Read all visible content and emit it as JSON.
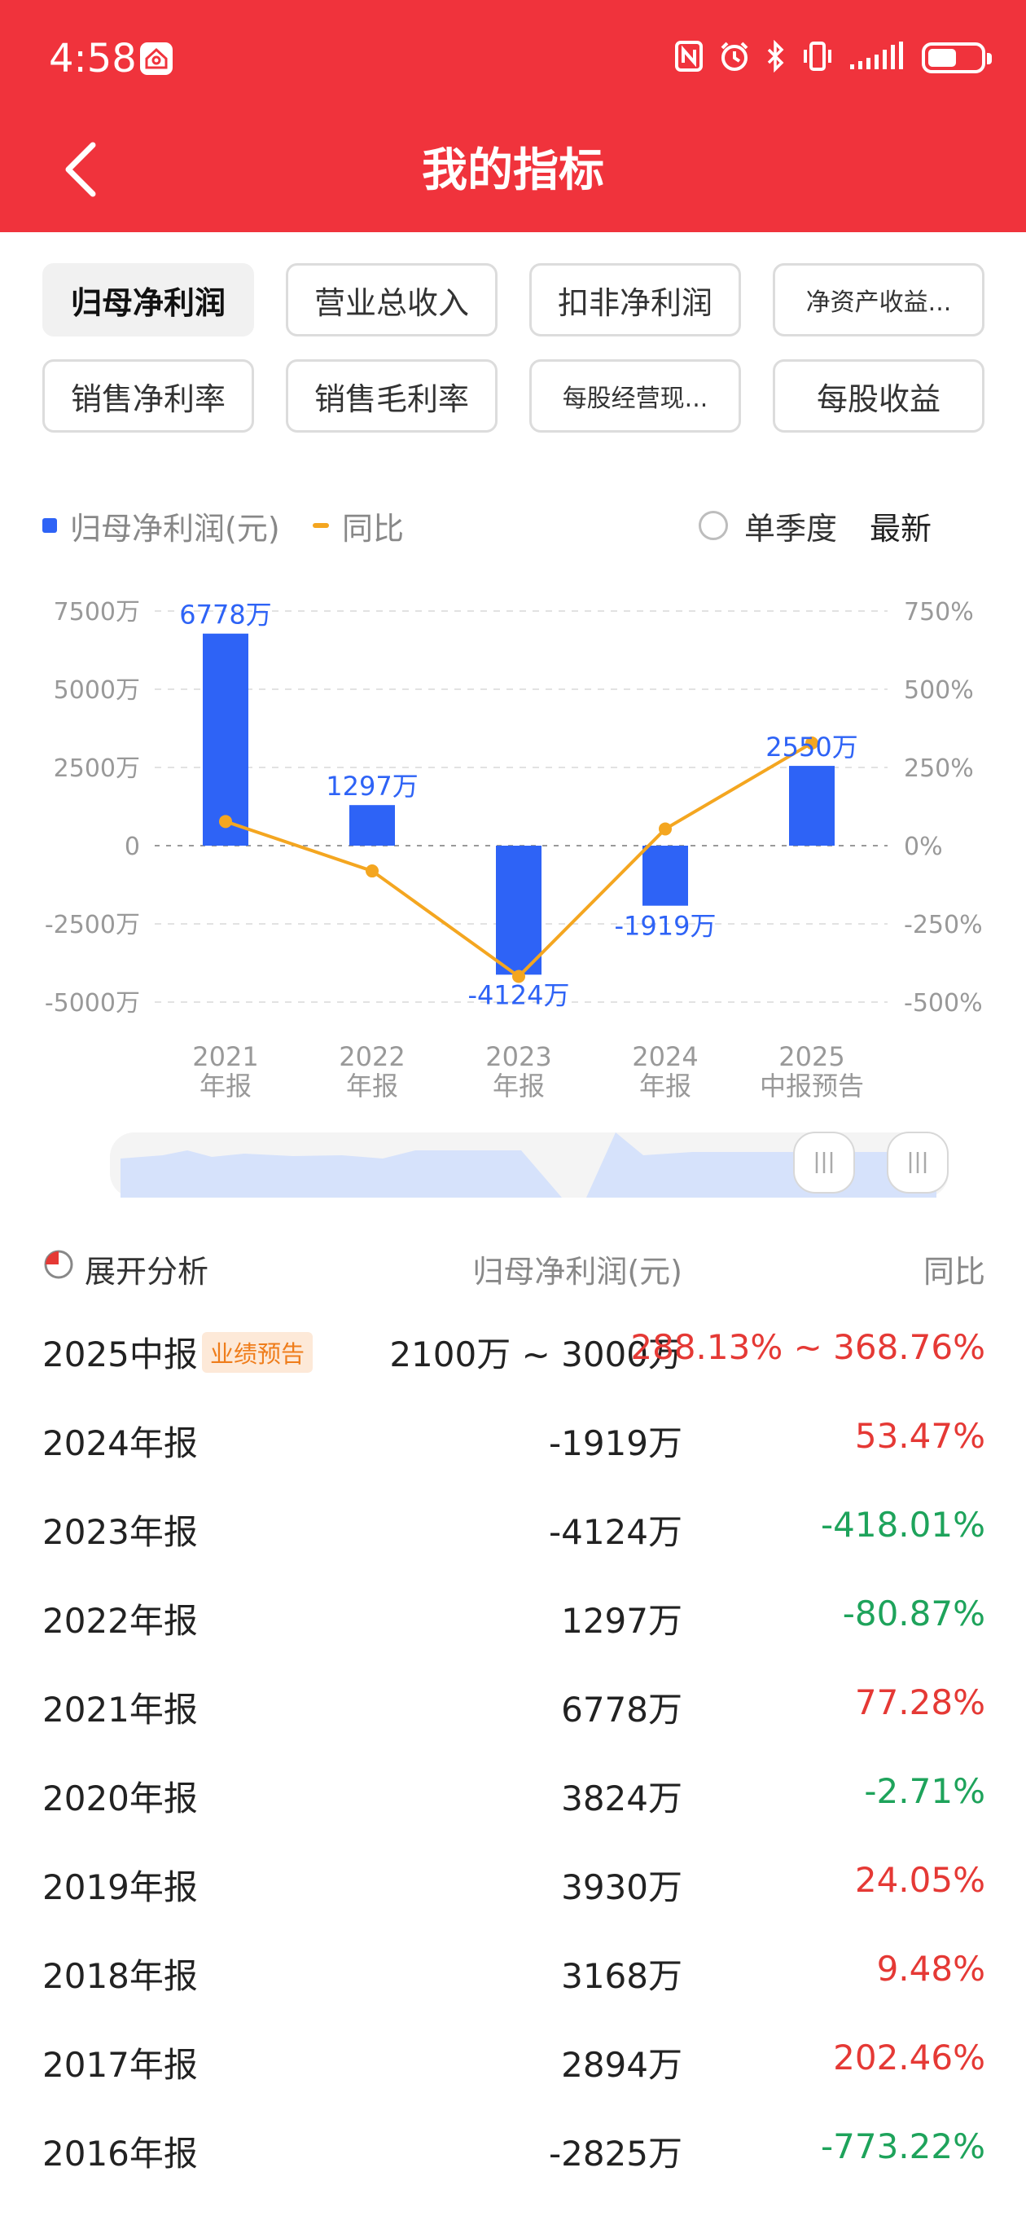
{
  "status_bar": {
    "time": "4:58"
  },
  "header": {
    "title": "我的指标"
  },
  "tabs": [
    {
      "label": "归母净利润",
      "active": true
    },
    {
      "label": "营业总收入"
    },
    {
      "label": "扣非净利润"
    },
    {
      "label": "净资产收益..."
    },
    {
      "label": "销售净利率"
    },
    {
      "label": "销售毛利率"
    },
    {
      "label": "每股经营现..."
    },
    {
      "label": "每股收益"
    }
  ],
  "legend": {
    "series_bar": "归母净利润(元)",
    "series_line": "同比",
    "single_quarter": "单季度",
    "latest": "最新"
  },
  "chart_data": {
    "type": "bar",
    "categories": [
      "2021\n年报",
      "2022\n年报",
      "2023\n年报",
      "2024\n年报",
      "2025\n中报预告"
    ],
    "categories_line1": [
      "2021",
      "2022",
      "2023",
      "2024",
      "2025"
    ],
    "categories_line2": [
      "年报",
      "年报",
      "年报",
      "年报",
      "中报预告"
    ],
    "series": [
      {
        "name": "归母净利润(元)",
        "type": "bar",
        "values": [
          6778,
          1297,
          -4124,
          -1919,
          2550
        ],
        "labels": [
          "6778万",
          "1297万",
          "-4124万",
          "-1919万",
          "2550万"
        ],
        "color": "#2e63f6"
      },
      {
        "name": "同比",
        "type": "line",
        "values": [
          77.28,
          -80.87,
          -418.01,
          53.47,
          328
        ],
        "color": "#f4a620"
      }
    ],
    "left_axis": {
      "ticks": [
        "7500万",
        "5000万",
        "2500万",
        "0",
        "-2500万",
        "-5000万"
      ],
      "tick_values": [
        7500,
        5000,
        2500,
        0,
        -2500,
        -5000
      ],
      "range": [
        -5000,
        7500
      ]
    },
    "right_axis": {
      "ticks": [
        "750%",
        "500%",
        "250%",
        "0%",
        "-250%",
        "-500%"
      ],
      "tick_values": [
        750,
        500,
        250,
        0,
        -250,
        -500
      ],
      "range": [
        -500,
        750
      ]
    },
    "grid": true
  },
  "table": {
    "expand_label": "展开分析",
    "col_value": "归母净利润(元)",
    "col_yoy": "同比",
    "rows": [
      {
        "period": "2025中报",
        "tag": "业绩预告",
        "value": "2100万 ~ 3000万",
        "yoy": "288.13% ~ 368.76%",
        "dir": "up"
      },
      {
        "period": "2024年报",
        "value": "-1919万",
        "yoy": "53.47%",
        "dir": "up"
      },
      {
        "period": "2023年报",
        "value": "-4124万",
        "yoy": "-418.01%",
        "dir": "down"
      },
      {
        "period": "2022年报",
        "value": "1297万",
        "yoy": "-80.87%",
        "dir": "down"
      },
      {
        "period": "2021年报",
        "value": "6778万",
        "yoy": "77.28%",
        "dir": "up"
      },
      {
        "period": "2020年报",
        "value": "3824万",
        "yoy": "-2.71%",
        "dir": "down"
      },
      {
        "period": "2019年报",
        "value": "3930万",
        "yoy": "24.05%",
        "dir": "up"
      },
      {
        "period": "2018年报",
        "value": "3168万",
        "yoy": "9.48%",
        "dir": "up"
      },
      {
        "period": "2017年报",
        "value": "2894万",
        "yoy": "202.46%",
        "dir": "up"
      },
      {
        "period": "2016年报",
        "value": "-2825万",
        "yoy": "-773.22%",
        "dir": "down"
      }
    ]
  },
  "colors": {
    "brand_red": "#f0333c",
    "bar_blue": "#2e63f6",
    "line_orange": "#f4a620",
    "up_red": "#e53935",
    "down_green": "#1ea35b"
  }
}
